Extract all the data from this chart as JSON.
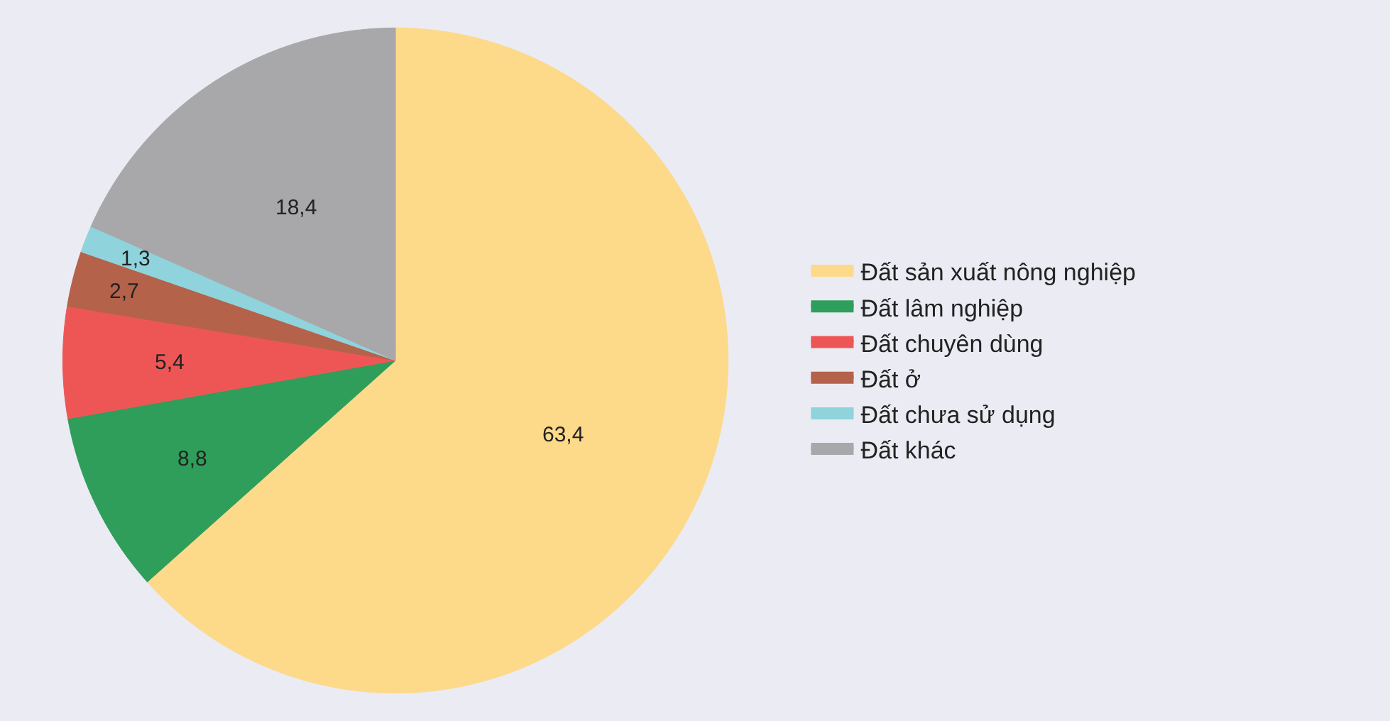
{
  "chart_data": {
    "type": "pie",
    "categories": [
      "Đất sản xuất nông nghiệp",
      "Đất lâm nghiệp",
      "Đất chuyên dùng",
      "Đất ở",
      "Đất chưa sử dụng",
      "Đất khác"
    ],
    "values": [
      63.4,
      8.8,
      5.4,
      2.7,
      1.3,
      18.4
    ],
    "value_labels": [
      "63,4",
      "8,8",
      "5,4",
      "2,7",
      "1,3",
      "18,4"
    ],
    "colors": [
      "#fdd98a",
      "#2e9e5a",
      "#ee5656",
      "#b5624b",
      "#8fd4dc",
      "#a8a8aa"
    ],
    "legend": "right"
  }
}
